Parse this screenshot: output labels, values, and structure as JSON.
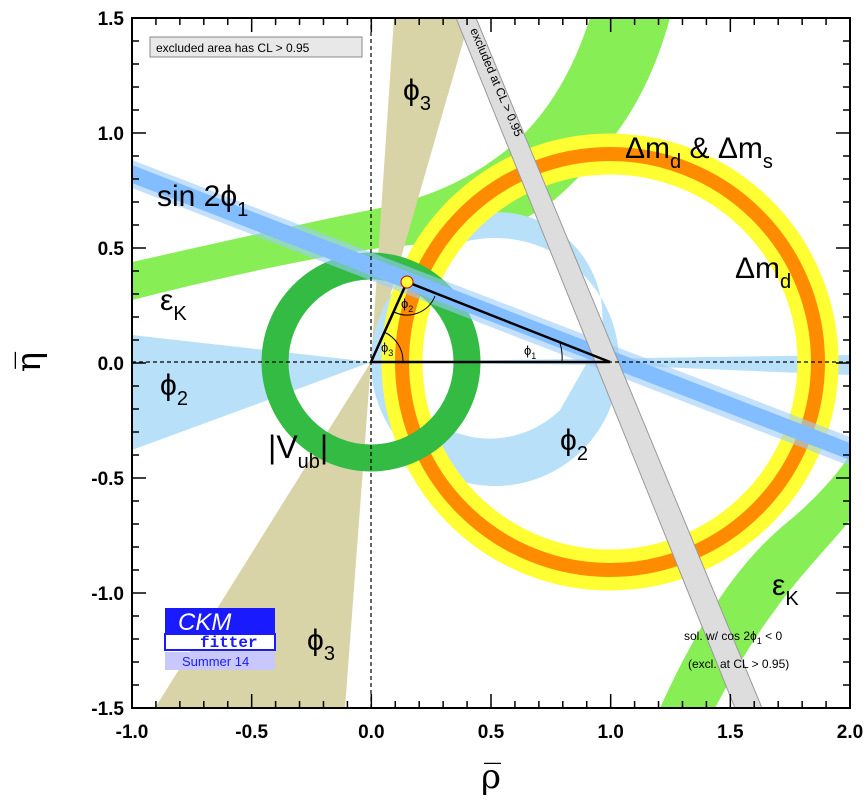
{
  "chart_data": {
    "type": "diagram",
    "xlabel": "ρ̅",
    "ylabel": "η̅",
    "xlim": [
      -1.0,
      2.0
    ],
    "ylim": [
      -1.5,
      1.5
    ],
    "x_ticks": [
      "-1.0",
      "-0.5",
      "0.0",
      "0.5",
      "1.0",
      "1.5",
      "2.0"
    ],
    "y_ticks": [
      "-1.5",
      "-1.0",
      "-0.5",
      "0.0",
      "0.5",
      "1.0",
      "1.5"
    ],
    "apex": {
      "rho": 0.15,
      "eta": 0.34
    },
    "constraints": [
      {
        "name": "ΔmdΔms_ring",
        "center": [
          1.0,
          0.0
        ],
        "r_inner": 0.84,
        "r_outer": 0.9,
        "color": "#ff8c00"
      },
      {
        "name": "Δmd_ring",
        "center": [
          1.0,
          0.0
        ],
        "r_inner": 0.78,
        "r_outer": 0.96,
        "color": "#ffff33"
      },
      {
        "name": "Vub_ring",
        "center": [
          0.0,
          0.0
        ],
        "r_inner": 0.33,
        "r_outer": 0.47,
        "color": "#33bb44"
      },
      {
        "name": "phi1_band",
        "color": "#5aa9ff"
      },
      {
        "name": "phi2_band",
        "color": "#b8e0f8"
      },
      {
        "name": "phi3_band",
        "color": "#d8d4a8"
      },
      {
        "name": "epsK_band",
        "color": "#88ee55"
      },
      {
        "name": "excluded_band",
        "color": "#dddddd"
      }
    ],
    "annotations": {
      "excluded_box": "excluded area has CL > 0.95",
      "excluded_band_label": "excluded at CL > 0.95",
      "sol_line1": "sol. w/ cos 2ϕ",
      "sol_line1_sub": "1",
      "sol_line1_end": " < 0",
      "sol_line2": "(excl. at CL > 0.95)"
    },
    "labels": {
      "phi3_top": "ϕ",
      "phi3_top_sub": "3",
      "phi3_bottom": "ϕ",
      "phi3_bottom_sub": "3",
      "dmd_dms": "Δm",
      "dmd_dms_sub1": "d",
      "dmd_dms_mid": " & Δm",
      "dmd_dms_sub2": "s",
      "dmd": "Δm",
      "dmd_sub": "d",
      "sin2phi1": "sin 2ϕ",
      "sin2phi1_sub": "1",
      "epsK_left": "ε",
      "epsK_left_sub": "K",
      "epsK_right": "ε",
      "epsK_right_sub": "K",
      "phi2_left": "ϕ",
      "phi2_left_sub": "2",
      "phi2_right": "ϕ",
      "phi2_right_sub": "2",
      "vub": "|V",
      "vub_sub": "ub",
      "vub_end": "|",
      "tri_phi1": "ϕ",
      "tri_phi1_sub": "1",
      "tri_phi2": "ϕ",
      "tri_phi2_sub": "2",
      "tri_phi3": "ϕ",
      "tri_phi3_sub": "3"
    },
    "logo": {
      "line1": "CKM",
      "line2": "fitter",
      "line3": "Summer 14"
    }
  }
}
